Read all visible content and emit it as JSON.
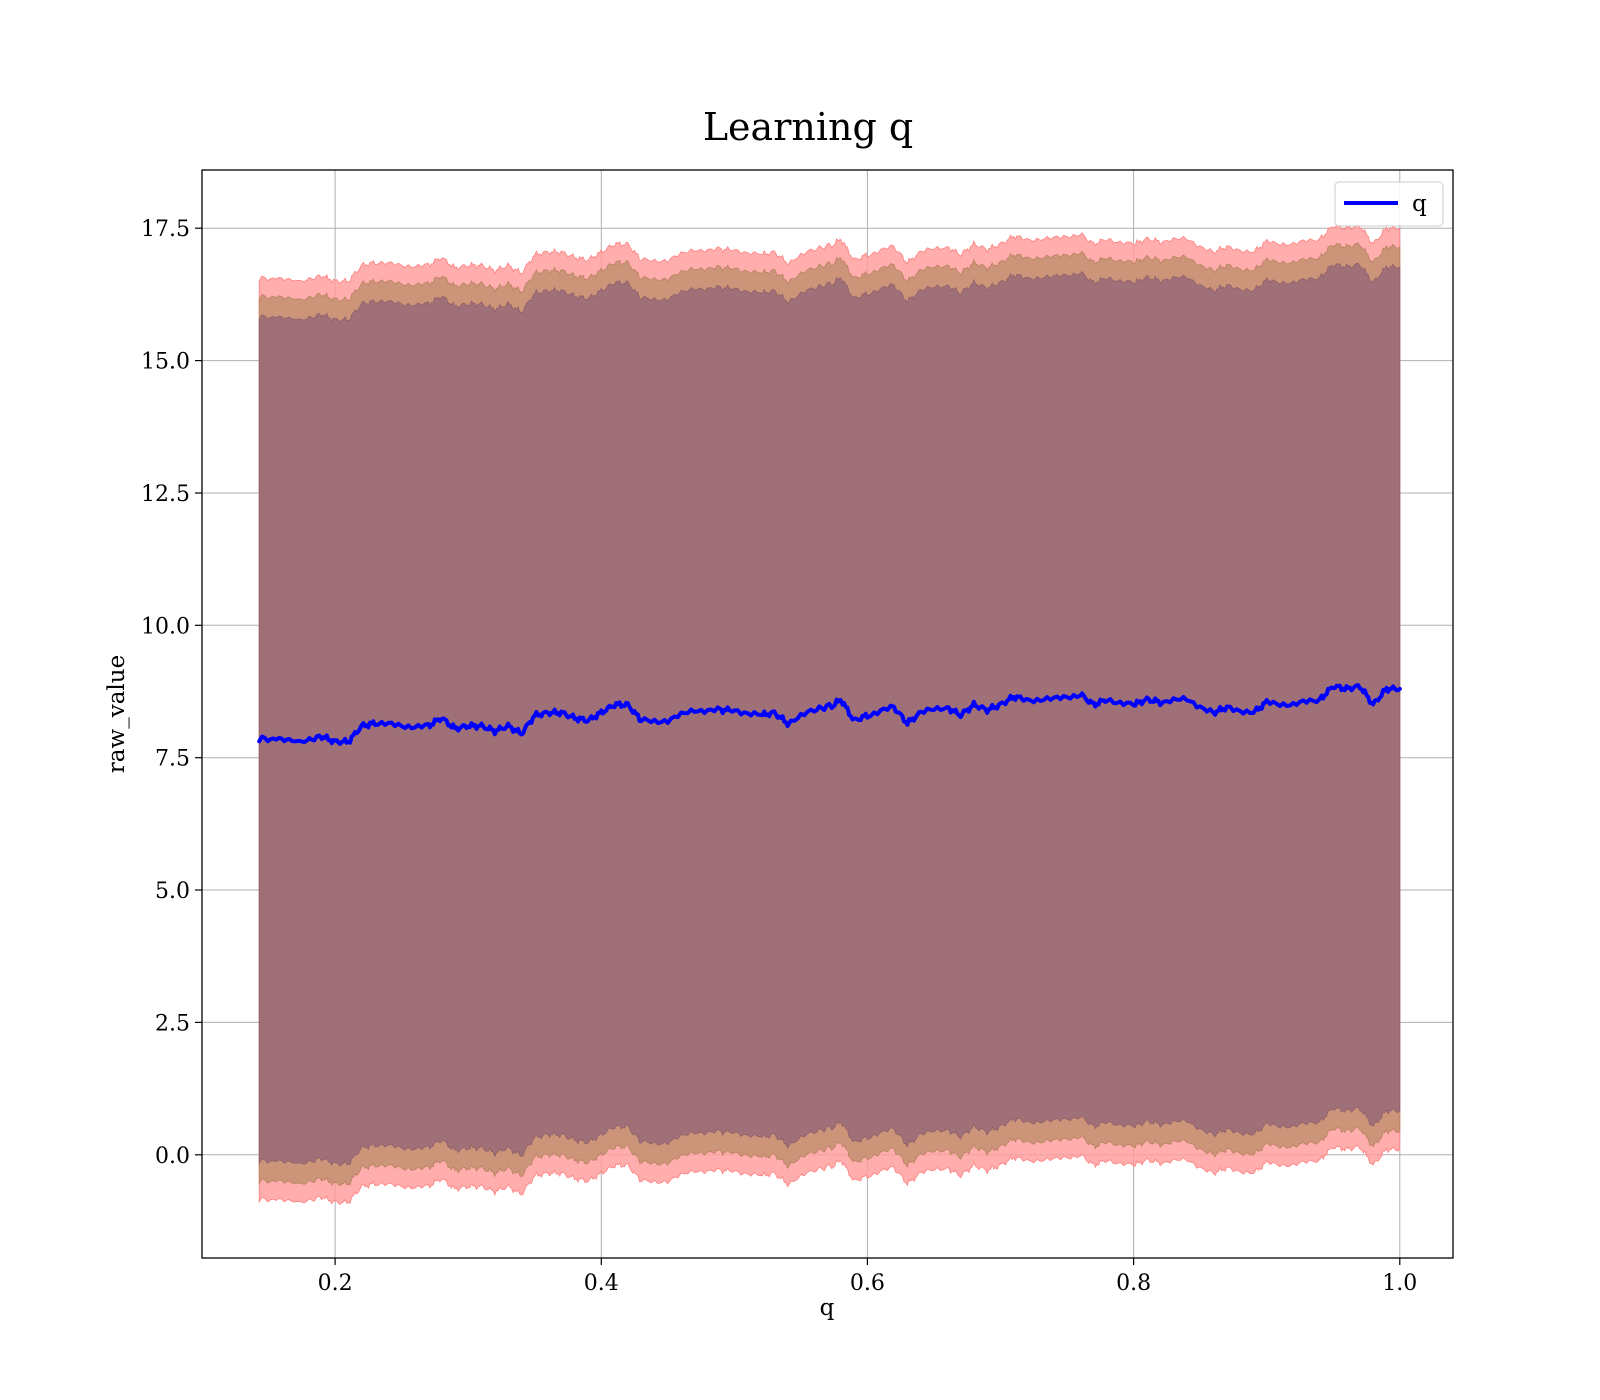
{
  "chart_data": {
    "type": "line",
    "title": "Learning q",
    "xlabel": "q",
    "ylabel": "raw_value",
    "xlim": [
      0.1,
      1.04
    ],
    "ylim": [
      -1.95,
      18.6
    ],
    "x_ticks": [
      0.2,
      0.4,
      0.6,
      0.8,
      1.0
    ],
    "x_tick_labels": [
      "0.2",
      "0.4",
      "0.6",
      "0.8",
      "1.0"
    ],
    "y_ticks": [
      0.0,
      2.5,
      5.0,
      7.5,
      10.0,
      12.5,
      15.0,
      17.5
    ],
    "y_tick_labels": [
      "0.0",
      "2.5",
      "5.0",
      "7.5",
      "10.0",
      "12.5",
      "15.0",
      "17.5"
    ],
    "grid": true,
    "legend": {
      "position": "top-right",
      "entries": [
        "q"
      ]
    },
    "colors": {
      "line": "#0000ff",
      "band_outer": "#ff9b9b",
      "band_middle": "#c69173",
      "band_inner": "#a07079"
    },
    "x": [
      0.143,
      0.16,
      0.175,
      0.19,
      0.2,
      0.21,
      0.22,
      0.23,
      0.25,
      0.27,
      0.28,
      0.29,
      0.3,
      0.31,
      0.32,
      0.33,
      0.34,
      0.35,
      0.36,
      0.37,
      0.38,
      0.39,
      0.4,
      0.41,
      0.42,
      0.43,
      0.45,
      0.47,
      0.49,
      0.5,
      0.52,
      0.53,
      0.54,
      0.56,
      0.575,
      0.58,
      0.59,
      0.6,
      0.62,
      0.63,
      0.64,
      0.66,
      0.67,
      0.68,
      0.69,
      0.7,
      0.71,
      0.72,
      0.74,
      0.76,
      0.77,
      0.78,
      0.8,
      0.81,
      0.82,
      0.84,
      0.86,
      0.87,
      0.89,
      0.9,
      0.92,
      0.94,
      0.95,
      0.96,
      0.97,
      0.98,
      0.99,
      1.0
    ],
    "series": [
      {
        "name": "q",
        "values": [
          7.85,
          7.85,
          7.8,
          7.9,
          7.8,
          7.8,
          8.1,
          8.15,
          8.1,
          8.1,
          8.25,
          8.05,
          8.1,
          8.1,
          8.0,
          8.1,
          7.95,
          8.3,
          8.35,
          8.35,
          8.25,
          8.2,
          8.35,
          8.5,
          8.5,
          8.2,
          8.2,
          8.4,
          8.4,
          8.4,
          8.3,
          8.35,
          8.15,
          8.4,
          8.5,
          8.6,
          8.2,
          8.3,
          8.45,
          8.15,
          8.35,
          8.45,
          8.3,
          8.5,
          8.4,
          8.5,
          8.65,
          8.6,
          8.6,
          8.7,
          8.5,
          8.6,
          8.5,
          8.6,
          8.55,
          8.6,
          8.35,
          8.45,
          8.35,
          8.55,
          8.5,
          8.6,
          8.85,
          8.8,
          8.85,
          8.5,
          8.8,
          8.8
        ]
      }
    ]
  }
}
